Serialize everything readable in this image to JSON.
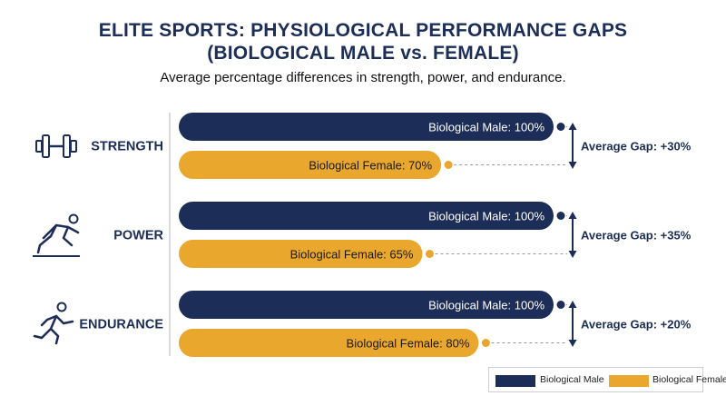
{
  "title_line1": "ELITE SPORTS: PHYSIOLOGICAL PERFORMANCE GAPS",
  "title_line2": "(BIOLOGICAL MALE vs. FEMALE)",
  "subtitle": "Average percentage differences in strength, power, and endurance.",
  "colors": {
    "male": "#1c2e57",
    "female": "#eaa72e",
    "text_dark": "#1c2e57"
  },
  "legend": {
    "male": "Biological Male",
    "female": "Biological Female"
  },
  "chart_data": {
    "type": "bar",
    "orientation": "horizontal",
    "categories": [
      "STRENGTH",
      "POWER",
      "ENDURANCE"
    ],
    "icons": [
      "dumbbell-icon",
      "sprinter-start-icon",
      "runner-icon"
    ],
    "series": [
      {
        "name": "Biological Male",
        "values": [
          100,
          100,
          100
        ]
      },
      {
        "name": "Biological Female",
        "values": [
          70,
          65,
          80
        ]
      }
    ],
    "bar_labels": {
      "Biological Male": [
        "Biological Male: 100%",
        "Biological Male: 100%",
        "Biological Male: 100%"
      ],
      "Biological Female": [
        "Biological Female: 70%",
        "Biological Female: 65%",
        "Biological Female: 80%"
      ]
    },
    "gap_labels": [
      "Average Gap: +30%",
      "Average Gap: +35%",
      "Average Gap: +20%"
    ],
    "xlim": [
      0,
      100
    ],
    "grid": false,
    "legend_position": "bottom-right"
  }
}
